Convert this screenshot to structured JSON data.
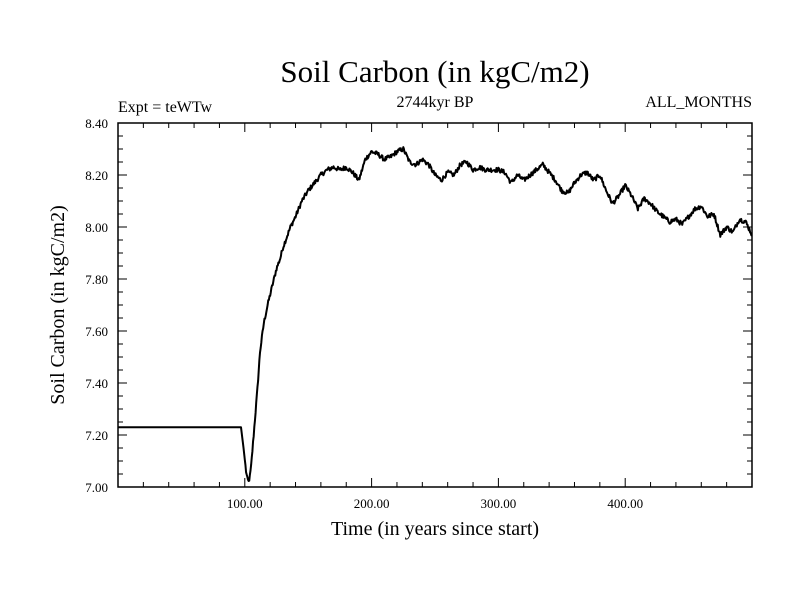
{
  "chart_data": {
    "type": "line",
    "title": "Soil Carbon (in kgC/m2)",
    "subtitle_left": "Expt = teWTw",
    "subtitle_center": "2744kyr BP",
    "subtitle_right": "ALL_MONTHS",
    "xlabel": "Time (in years since start)",
    "ylabel": "Soil Carbon (in kgC/m2)",
    "xlim": [
      0,
      500
    ],
    "ylim": [
      7.0,
      8.4
    ],
    "grid": false,
    "xticks": [
      {
        "value": 100,
        "label": "100.00"
      },
      {
        "value": 200,
        "label": "200.00"
      },
      {
        "value": 300,
        "label": "300.00"
      },
      {
        "value": 400,
        "label": "400.00"
      }
    ],
    "yticks": [
      {
        "value": 7.0,
        "label": "7.00"
      },
      {
        "value": 7.2,
        "label": "7.20"
      },
      {
        "value": 7.4,
        "label": "7.40"
      },
      {
        "value": 7.6,
        "label": "7.60"
      },
      {
        "value": 7.8,
        "label": "7.80"
      },
      {
        "value": 8.0,
        "label": "8.00"
      },
      {
        "value": 8.2,
        "label": "8.20"
      },
      {
        "value": 8.4,
        "label": "8.40"
      }
    ],
    "series": [
      {
        "name": "Soil Carbon",
        "color": "#000000",
        "x": [
          0,
          10,
          20,
          30,
          40,
          50,
          60,
          70,
          80,
          90,
          97,
          99,
          101,
          102,
          103,
          104,
          105,
          107,
          110,
          112,
          115,
          118,
          120,
          122,
          125,
          128,
          130,
          133,
          136,
          140,
          145,
          150,
          155,
          160,
          165,
          170,
          175,
          180,
          185,
          190,
          195,
          200,
          205,
          210,
          215,
          220,
          225,
          230,
          235,
          240,
          245,
          250,
          255,
          260,
          265,
          270,
          275,
          280,
          285,
          290,
          295,
          300,
          305,
          310,
          315,
          320,
          325,
          330,
          335,
          340,
          345,
          350,
          355,
          360,
          365,
          370,
          375,
          380,
          385,
          390,
          395,
          400,
          405,
          410,
          415,
          420,
          425,
          430,
          435,
          440,
          445,
          450,
          455,
          460,
          465,
          470,
          475,
          480,
          485,
          490,
          495,
          500
        ],
        "values": [
          7.23,
          7.23,
          7.23,
          7.23,
          7.23,
          7.23,
          7.23,
          7.23,
          7.23,
          7.23,
          7.23,
          7.15,
          7.06,
          7.03,
          7.02,
          7.04,
          7.08,
          7.2,
          7.38,
          7.52,
          7.63,
          7.7,
          7.74,
          7.78,
          7.84,
          7.88,
          7.92,
          7.96,
          8.0,
          8.04,
          8.1,
          8.14,
          8.17,
          8.2,
          8.22,
          8.23,
          8.22,
          8.23,
          8.21,
          8.18,
          8.26,
          8.29,
          8.28,
          8.26,
          8.27,
          8.29,
          8.3,
          8.25,
          8.24,
          8.26,
          8.24,
          8.2,
          8.18,
          8.21,
          8.2,
          8.24,
          8.25,
          8.22,
          8.23,
          8.22,
          8.22,
          8.22,
          8.21,
          8.17,
          8.2,
          8.18,
          8.2,
          8.22,
          8.24,
          8.21,
          8.18,
          8.14,
          8.13,
          8.17,
          8.2,
          8.21,
          8.18,
          8.2,
          8.14,
          8.09,
          8.12,
          8.16,
          8.12,
          8.07,
          8.11,
          8.09,
          8.06,
          8.04,
          8.02,
          8.03,
          8.01,
          8.04,
          8.07,
          8.08,
          8.04,
          8.05,
          7.97,
          8.0,
          7.98,
          8.03,
          8.02,
          7.97
        ]
      }
    ]
  }
}
